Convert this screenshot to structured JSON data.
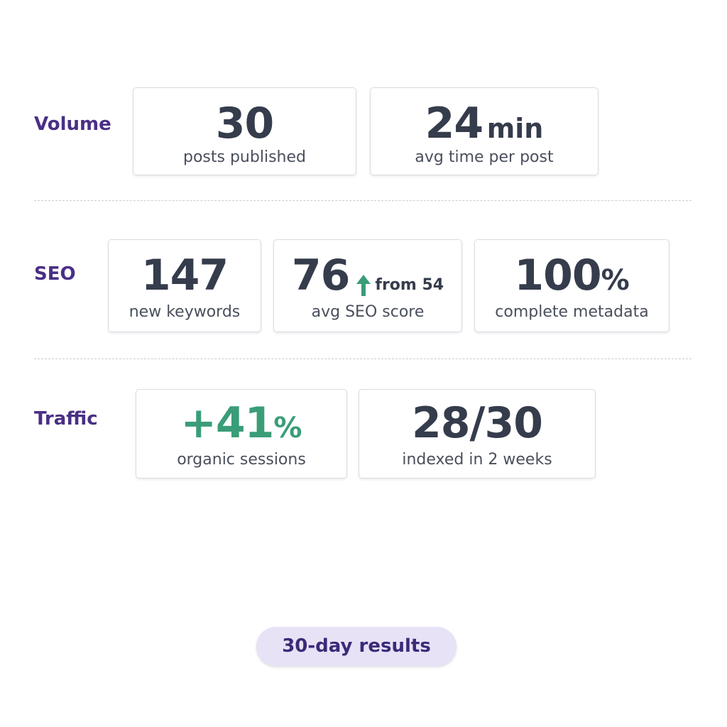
{
  "volume": {
    "label": "Volume",
    "posts": {
      "value": "30",
      "caption": "posts published"
    },
    "time": {
      "value": "24",
      "unit": "min",
      "caption": "avg time per post"
    }
  },
  "seo": {
    "label": "SEO",
    "keywords": {
      "value": "147",
      "caption": "new keywords"
    },
    "score": {
      "value": "76",
      "from_text": "from 54",
      "caption": "avg SEO score",
      "arrow_icon": "arrow-up-icon"
    },
    "metadata": {
      "value": "100",
      "unit": "%",
      "caption": "complete metadata"
    }
  },
  "traffic": {
    "label": "Traffic",
    "sessions": {
      "value": "+41",
      "unit": "%",
      "caption": "organic sessions"
    },
    "indexed": {
      "value": "28/30",
      "caption": "indexed in 2 weeks"
    }
  },
  "footer": {
    "badge": "30-day results"
  },
  "colors": {
    "label_purple": "#4a2f86",
    "metric_dark": "#353c4c",
    "positive_green": "#3a9d78",
    "pill_bg": "#e7e2f6"
  }
}
